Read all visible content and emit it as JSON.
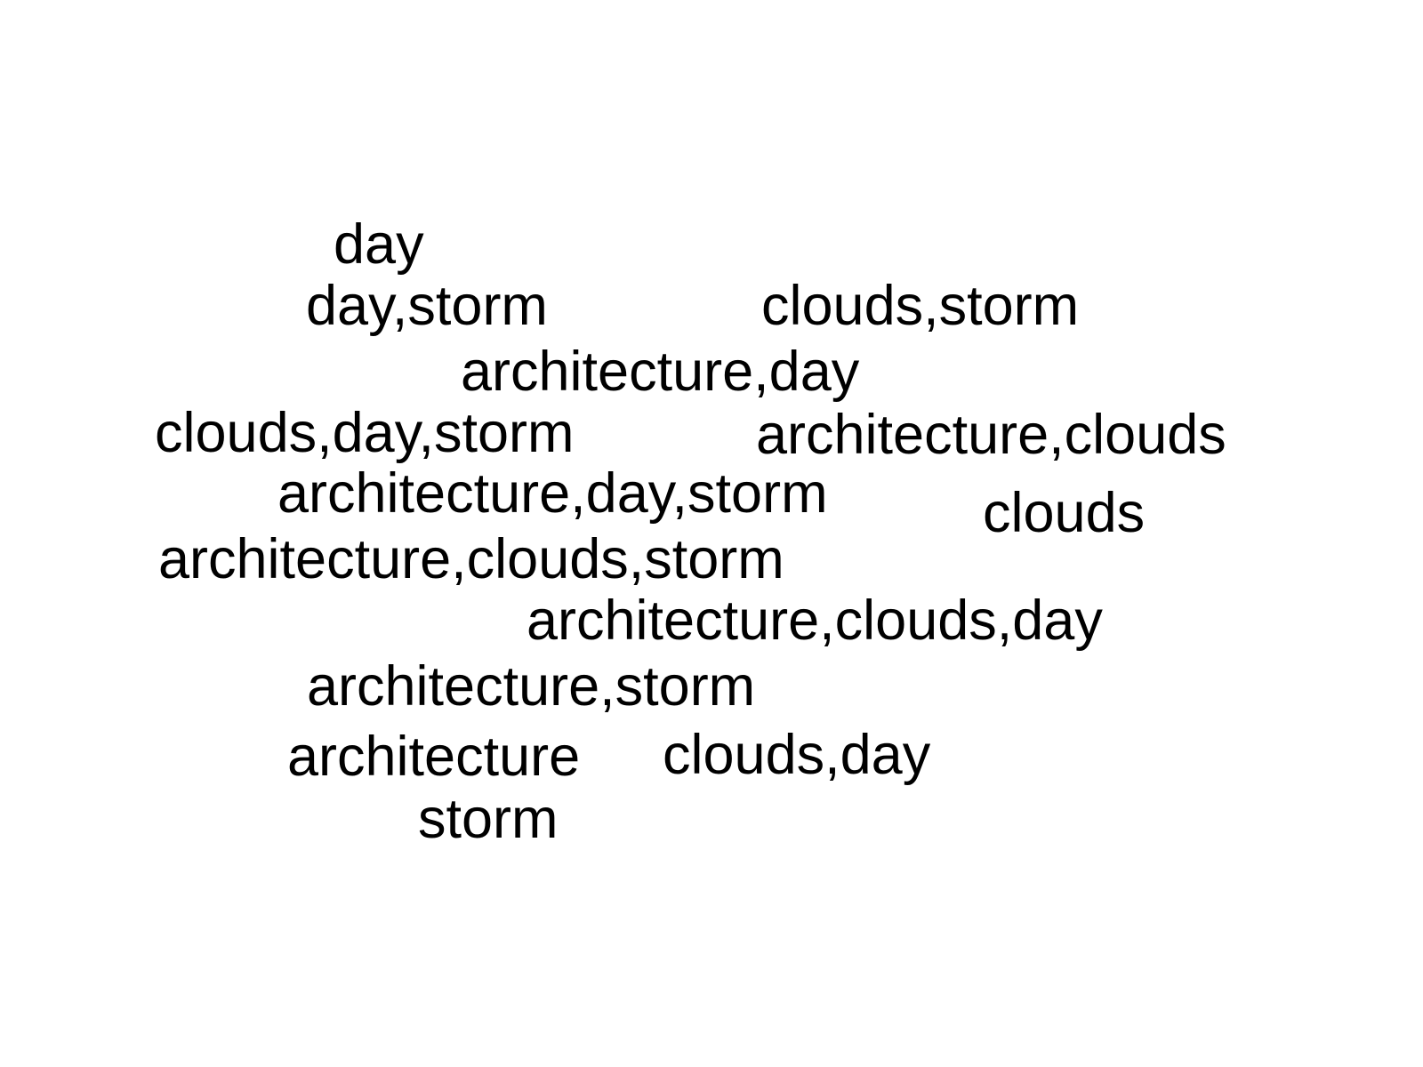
{
  "cloud": {
    "words": [
      "day",
      "day,storm",
      "clouds,storm",
      "architecture,day",
      "clouds,day,storm",
      "architecture,clouds",
      "architecture,day,storm",
      "clouds",
      "architecture,clouds,storm",
      "architecture,clouds,day",
      "architecture,storm",
      "architecture",
      "clouds,day",
      "storm"
    ]
  },
  "colors": {
    "background": "#ffffff",
    "text": "#000000"
  }
}
